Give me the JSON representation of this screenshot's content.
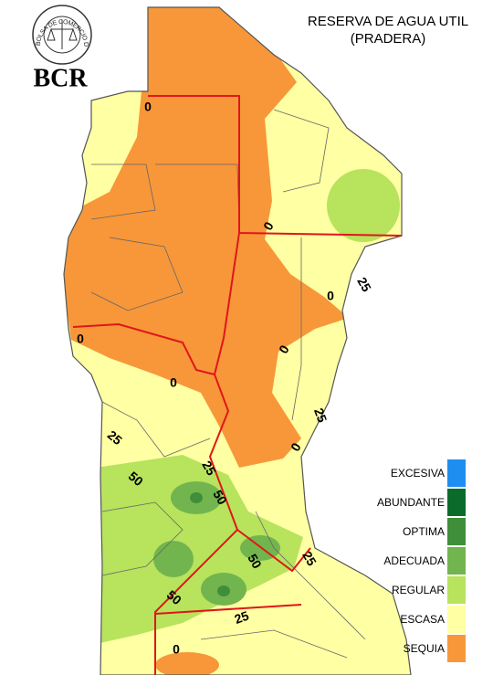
{
  "header": {
    "title_line1": "RESERVA DE AGUA UTIL",
    "title_line2": "(PRADERA)",
    "logo_text": "BCR",
    "seal_text": "BOLSA DE COMERCIO DE ROSARIO"
  },
  "legend": [
    {
      "label": "EXCESIVA",
      "color": "#1e8ff0"
    },
    {
      "label": "ABUNDANTE",
      "color": "#0b6b2a"
    },
    {
      "label": "OPTIMA",
      "color": "#3f8f3a"
    },
    {
      "label": "ADECUADA",
      "color": "#72b54e"
    },
    {
      "label": "REGULAR",
      "color": "#b7e35d"
    },
    {
      "label": "ESCASA",
      "color": "#ffffa3"
    },
    {
      "label": "SEQUIA",
      "color": "#f7973a"
    }
  ],
  "contour_labels": [
    "0",
    "0",
    "25",
    "0",
    "0",
    "0",
    "0",
    "25",
    "25",
    "0",
    "50",
    "25",
    "50",
    "50",
    "25",
    "50",
    "25",
    "0"
  ]
}
